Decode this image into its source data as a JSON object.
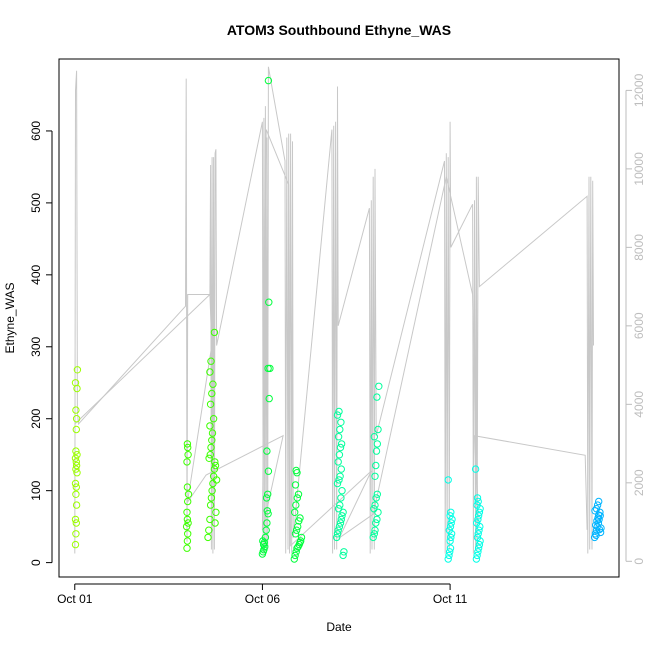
{
  "chart_data": {
    "type": "scatter",
    "title": "ATOM3 Southbound Ethyne_WAS",
    "xlabel": "Date",
    "ylabel": "Ethyne_WAS",
    "x_ticks": [
      "Oct 01",
      "Oct 06",
      "Oct 11"
    ],
    "x_tick_days": [
      1,
      6,
      11
    ],
    "xlim_days": [
      0.58,
      15.5
    ],
    "y_ticks": [
      0,
      100,
      200,
      300,
      400,
      500,
      600
    ],
    "ylim": [
      -20,
      700
    ],
    "y2_ticks": [
      0,
      2000,
      4000,
      6000,
      8000,
      10000,
      12000
    ],
    "y2lim": [
      -400,
      12800
    ],
    "grid": false,
    "secondary_series_color": "#c8c8c8",
    "series": [
      {
        "color_hint": "#9cff00",
        "points": [
          [
            1.02,
            25
          ],
          [
            1.03,
            40
          ],
          [
            1.04,
            55
          ],
          [
            1.02,
            60
          ],
          [
            1.05,
            80
          ],
          [
            1.03,
            95
          ],
          [
            1.04,
            105
          ],
          [
            1.02,
            110
          ],
          [
            1.06,
            125
          ],
          [
            1.03,
            130
          ],
          [
            1.05,
            135
          ],
          [
            1.04,
            140
          ],
          [
            1.02,
            145
          ],
          [
            1.06,
            150
          ],
          [
            1.03,
            155
          ],
          [
            1.04,
            185
          ],
          [
            1.05,
            200
          ],
          [
            1.03,
            212
          ],
          [
            1.06,
            242
          ],
          [
            1.02,
            250
          ],
          [
            1.07,
            268
          ]
        ]
      },
      {
        "color_hint": "#3cff00",
        "points": [
          [
            3.99,
            20
          ],
          [
            4.0,
            30
          ],
          [
            4.01,
            40
          ],
          [
            3.98,
            50
          ],
          [
            4.02,
            55
          ],
          [
            4.0,
            60
          ],
          [
            3.99,
            70
          ],
          [
            4.01,
            85
          ],
          [
            4.03,
            95
          ],
          [
            4.0,
            105
          ],
          [
            3.99,
            140
          ],
          [
            4.02,
            150
          ],
          [
            4.01,
            160
          ],
          [
            4.0,
            165
          ],
          [
            4.55,
            35
          ],
          [
            4.57,
            45
          ],
          [
            4.6,
            60
          ],
          [
            4.62,
            80
          ],
          [
            4.64,
            90
          ],
          [
            4.66,
            100
          ],
          [
            4.68,
            110
          ],
          [
            4.7,
            120
          ],
          [
            4.72,
            130
          ],
          [
            4.75,
            135
          ],
          [
            4.58,
            145
          ],
          [
            4.61,
            150
          ],
          [
            4.63,
            160
          ],
          [
            4.65,
            170
          ],
          [
            4.67,
            180
          ],
          [
            4.6,
            190
          ],
          [
            4.7,
            200
          ],
          [
            4.62,
            220
          ],
          [
            4.65,
            235
          ],
          [
            4.68,
            248
          ],
          [
            4.6,
            265
          ],
          [
            4.63,
            280
          ],
          [
            4.72,
            320
          ],
          [
            4.74,
            55
          ],
          [
            4.76,
            70
          ],
          [
            4.78,
            115
          ],
          [
            4.73,
            140
          ]
        ]
      },
      {
        "color_hint": "#00ff3c",
        "points": [
          [
            6.0,
            12
          ],
          [
            6.02,
            15
          ],
          [
            6.04,
            18
          ],
          [
            6.06,
            22
          ],
          [
            6.03,
            25
          ],
          [
            6.05,
            28
          ],
          [
            6.01,
            30
          ],
          [
            6.08,
            35
          ],
          [
            6.1,
            45
          ],
          [
            6.12,
            55
          ],
          [
            6.15,
            68
          ],
          [
            6.13,
            72
          ],
          [
            6.11,
            90
          ],
          [
            6.14,
            95
          ],
          [
            6.16,
            127
          ],
          [
            6.12,
            155
          ],
          [
            6.18,
            228
          ],
          [
            6.15,
            270
          ],
          [
            6.2,
            270
          ],
          [
            6.17,
            362
          ],
          [
            6.16,
            670
          ],
          [
            6.85,
            5
          ],
          [
            6.87,
            10
          ],
          [
            6.9,
            15
          ],
          [
            6.92,
            20
          ],
          [
            6.95,
            22
          ],
          [
            6.98,
            25
          ],
          [
            7.0,
            28
          ],
          [
            7.02,
            30
          ],
          [
            7.04,
            35
          ],
          [
            6.88,
            40
          ],
          [
            6.91,
            45
          ],
          [
            6.94,
            50
          ],
          [
            6.97,
            58
          ],
          [
            7.0,
            62
          ],
          [
            6.86,
            70
          ],
          [
            6.89,
            80
          ],
          [
            6.93,
            90
          ],
          [
            6.96,
            95
          ],
          [
            6.88,
            108
          ],
          [
            6.92,
            125
          ],
          [
            6.9,
            128
          ]
        ]
      },
      {
        "color_hint": "#00ff9c",
        "points": [
          [
            7.98,
            35
          ],
          [
            8.0,
            40
          ],
          [
            8.02,
            45
          ],
          [
            8.05,
            50
          ],
          [
            8.08,
            55
          ],
          [
            8.1,
            60
          ],
          [
            8.12,
            65
          ],
          [
            8.15,
            70
          ],
          [
            8.03,
            75
          ],
          [
            8.06,
            80
          ],
          [
            8.09,
            90
          ],
          [
            8.12,
            100
          ],
          [
            8.0,
            110
          ],
          [
            8.04,
            115
          ],
          [
            8.07,
            120
          ],
          [
            8.1,
            130
          ],
          [
            8.02,
            140
          ],
          [
            8.05,
            150
          ],
          [
            8.08,
            160
          ],
          [
            8.11,
            165
          ],
          [
            8.03,
            175
          ],
          [
            8.06,
            185
          ],
          [
            8.09,
            195
          ],
          [
            8.0,
            205
          ],
          [
            8.04,
            210
          ],
          [
            8.15,
            10
          ],
          [
            8.17,
            15
          ],
          [
            8.95,
            35
          ],
          [
            8.98,
            40
          ],
          [
            9.0,
            45
          ],
          [
            9.02,
            55
          ],
          [
            9.05,
            60
          ],
          [
            9.08,
            70
          ],
          [
            8.97,
            75
          ],
          [
            9.0,
            80
          ],
          [
            9.03,
            90
          ],
          [
            9.06,
            95
          ],
          [
            9.0,
            120
          ],
          [
            9.02,
            135
          ],
          [
            9.04,
            155
          ],
          [
            9.06,
            165
          ],
          [
            8.98,
            175
          ],
          [
            9.08,
            185
          ],
          [
            9.05,
            230
          ],
          [
            9.1,
            245
          ]
        ]
      },
      {
        "color_hint": "#00ffe6",
        "points": [
          [
            10.95,
            5
          ],
          [
            10.97,
            10
          ],
          [
            10.99,
            15
          ],
          [
            11.01,
            20
          ],
          [
            11.0,
            30
          ],
          [
            11.02,
            35
          ],
          [
            11.04,
            40
          ],
          [
            10.98,
            45
          ],
          [
            11.01,
            50
          ],
          [
            11.03,
            55
          ],
          [
            11.05,
            60
          ],
          [
            11.0,
            65
          ],
          [
            11.02,
            70
          ],
          [
            10.95,
            115
          ],
          [
            11.7,
            5
          ],
          [
            11.72,
            10
          ],
          [
            11.74,
            15
          ],
          [
            11.76,
            20
          ],
          [
            11.78,
            25
          ],
          [
            11.8,
            30
          ],
          [
            11.73,
            35
          ],
          [
            11.75,
            40
          ],
          [
            11.77,
            45
          ],
          [
            11.79,
            50
          ],
          [
            11.71,
            55
          ],
          [
            11.74,
            60
          ],
          [
            11.76,
            65
          ],
          [
            11.78,
            70
          ],
          [
            11.8,
            75
          ],
          [
            11.72,
            80
          ],
          [
            11.75,
            85
          ],
          [
            11.73,
            90
          ],
          [
            11.68,
            130
          ]
        ]
      },
      {
        "color_hint": "#00b4ff",
        "points": [
          [
            14.85,
            35
          ],
          [
            14.87,
            40
          ],
          [
            14.9,
            45
          ],
          [
            14.92,
            50
          ],
          [
            14.95,
            55
          ],
          [
            14.97,
            60
          ],
          [
            15.0,
            65
          ],
          [
            15.02,
            48
          ],
          [
            14.88,
            52
          ],
          [
            14.91,
            58
          ],
          [
            14.94,
            62
          ],
          [
            14.96,
            66
          ],
          [
            14.99,
            70
          ],
          [
            14.86,
            72
          ],
          [
            14.9,
            75
          ],
          [
            14.93,
            80
          ],
          [
            14.96,
            85
          ],
          [
            14.89,
            38
          ],
          [
            15.01,
            42
          ],
          [
            14.98,
            46
          ]
        ]
      }
    ],
    "secondary_series": [
      {
        "points": [
          [
            1.0,
            200
          ],
          [
            1.02,
            12000
          ],
          [
            1.05,
            12500
          ],
          [
            1.07,
            3800
          ],
          [
            1.1,
            3500
          ],
          [
            3.95,
            6500
          ],
          [
            3.97,
            12300
          ],
          [
            3.99,
            500
          ],
          [
            4.01,
            6800
          ],
          [
            4.6,
            6800
          ],
          [
            4.62,
            10100
          ],
          [
            4.64,
            300
          ],
          [
            4.66,
            10300
          ],
          [
            4.68,
            200
          ],
          [
            4.7,
            10300
          ],
          [
            4.72,
            300
          ],
          [
            4.74,
            10400
          ],
          [
            4.76,
            10500
          ],
          [
            4.78,
            5500
          ],
          [
            6.0,
            11200
          ],
          [
            6.02,
            200
          ],
          [
            6.04,
            11300
          ],
          [
            6.06,
            200
          ],
          [
            6.08,
            11600
          ],
          [
            6.1,
            400
          ],
          [
            6.12,
            10800
          ],
          [
            6.14,
            300
          ],
          [
            6.16,
            12600
          ],
          [
            6.6,
            10200
          ],
          [
            6.62,
            200
          ],
          [
            6.65,
            10800
          ],
          [
            6.68,
            300
          ],
          [
            6.7,
            10900
          ],
          [
            6.72,
            200
          ],
          [
            6.75,
            10900
          ],
          [
            6.78,
            200
          ],
          [
            6.8,
            10700
          ],
          [
            6.82,
            600
          ],
          [
            7.85,
            11000
          ],
          [
            7.87,
            200
          ],
          [
            7.9,
            11100
          ],
          [
            7.92,
            300
          ],
          [
            7.95,
            11200
          ],
          [
            7.98,
            300
          ],
          [
            8.0,
            12100
          ],
          [
            8.02,
            6000
          ],
          [
            8.85,
            9000
          ],
          [
            8.87,
            200
          ],
          [
            8.9,
            9200
          ],
          [
            8.92,
            300
          ],
          [
            8.95,
            9800
          ],
          [
            8.98,
            300
          ],
          [
            9.0,
            10000
          ],
          [
            9.03,
            3200
          ],
          [
            10.85,
            10200
          ],
          [
            10.87,
            200
          ],
          [
            10.9,
            10400
          ],
          [
            10.92,
            300
          ],
          [
            10.95,
            10300
          ],
          [
            10.98,
            300
          ],
          [
            11.0,
            11200
          ],
          [
            11.02,
            8000
          ],
          [
            11.6,
            9100
          ],
          [
            11.62,
            200
          ],
          [
            11.65,
            9200
          ],
          [
            11.68,
            300
          ],
          [
            11.7,
            9800
          ],
          [
            11.72,
            300
          ],
          [
            11.75,
            9800
          ],
          [
            11.78,
            7000
          ],
          [
            14.65,
            9300
          ],
          [
            14.67,
            200
          ],
          [
            14.7,
            9800
          ],
          [
            14.72,
            300
          ],
          [
            14.75,
            9800
          ],
          [
            14.78,
            300
          ],
          [
            14.8,
            9700
          ],
          [
            14.82,
            5500
          ]
        ]
      },
      {
        "points": [
          [
            1.0,
            3500
          ],
          [
            4.6,
            6800
          ],
          [
            4.65,
            5500
          ],
          [
            4.0,
            1500
          ],
          [
            4.5,
            2200
          ],
          [
            6.55,
            3200
          ],
          [
            6.0,
            800
          ],
          [
            6.1,
            11000
          ],
          [
            6.7,
            9600
          ],
          [
            6.75,
            400
          ],
          [
            8.9,
            2300
          ],
          [
            8.05,
            600
          ],
          [
            8.95,
            1200
          ],
          [
            10.9,
            9800
          ],
          [
            11.6,
            6800
          ],
          [
            11.75,
            1000
          ],
          [
            11.65,
            3200
          ],
          [
            14.6,
            2700
          ],
          [
            14.65,
            800
          ]
        ]
      }
    ]
  }
}
